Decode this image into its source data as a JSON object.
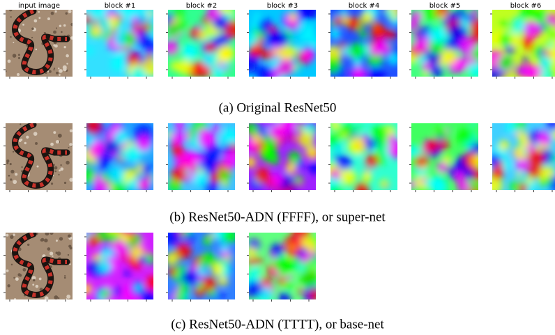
{
  "headers": [
    "input image",
    "block #1",
    "block #2",
    "block #3",
    "block #4",
    "block #5",
    "block #6"
  ],
  "captions": [
    "(a) Original ResNet50",
    "(b) ResNet50-ADN (FFFF), or super-net",
    "(c) ResNet50-ADN (TTTT), or base-net"
  ]
}
